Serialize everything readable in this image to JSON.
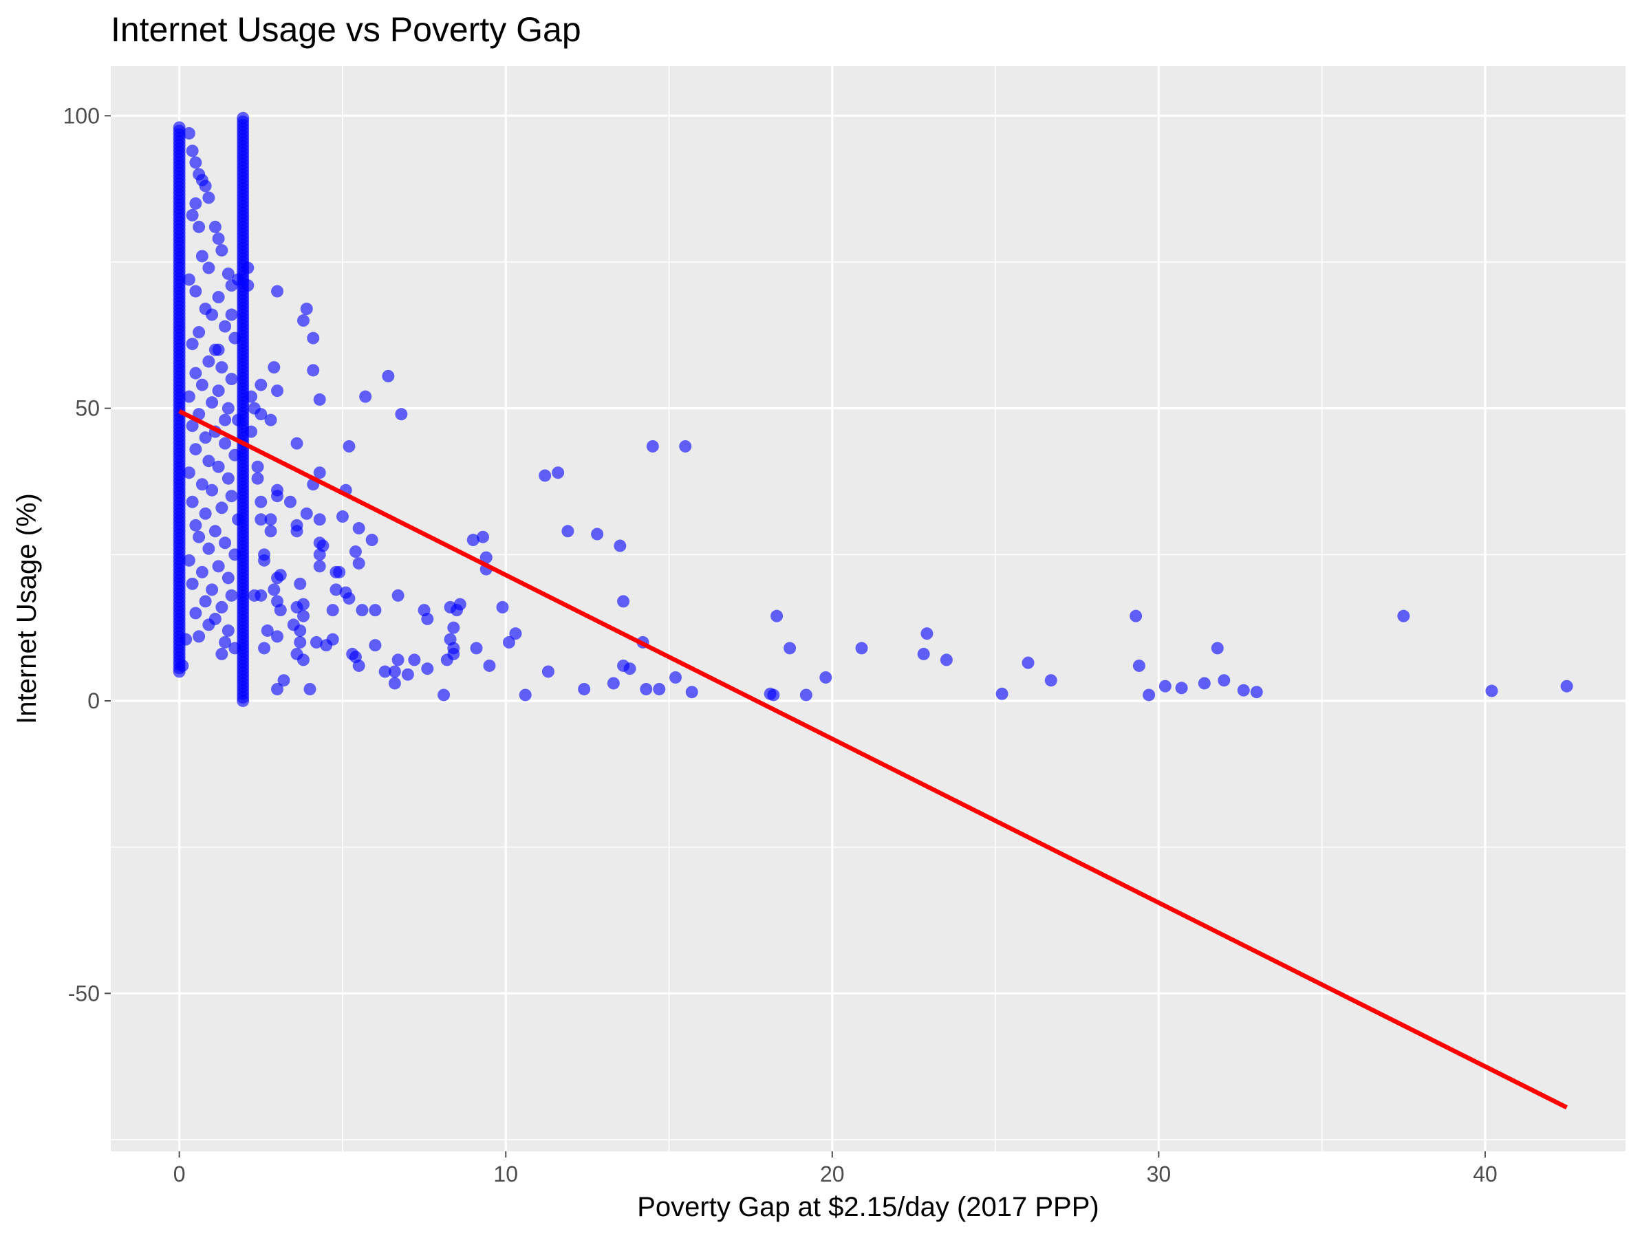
{
  "colors": {
    "panel": "#ebebeb",
    "grid": "#ffffff",
    "points": "#0000ff",
    "trend": "#ff0000",
    "tick": "#4d4d4d"
  },
  "chart_data": {
    "type": "scatter",
    "title": "Internet Usage vs Poverty Gap",
    "xlabel": "Poverty Gap at $2.15/day (2017 PPP)",
    "ylabel": "Internet Usage (%)",
    "xlim": [
      -2.1,
      44.3
    ],
    "ylim": [
      -77,
      108.5
    ],
    "x_ticks": [
      0,
      10,
      20,
      30,
      40
    ],
    "y_ticks": [
      -50,
      0,
      50,
      100
    ],
    "grid": true,
    "legend": "none",
    "trend_line": {
      "type": "linear",
      "x": [
        0,
        42.5
      ],
      "y": [
        49.5,
        -69.5
      ]
    },
    "dense_clusters": [
      {
        "x": 0.0,
        "y_range": [
          5,
          98.5
        ]
      },
      {
        "x": 1.95,
        "y_range": [
          0,
          100
        ]
      }
    ],
    "points": [
      [
        0.3,
        97
      ],
      [
        0.4,
        94
      ],
      [
        0.5,
        92
      ],
      [
        0.6,
        90
      ],
      [
        0.7,
        89
      ],
      [
        0.8,
        88
      ],
      [
        0.9,
        86
      ],
      [
        0.5,
        85
      ],
      [
        0.4,
        83
      ],
      [
        0.6,
        81
      ],
      [
        1.1,
        81
      ],
      [
        1.2,
        79
      ],
      [
        1.3,
        77
      ],
      [
        0.7,
        76
      ],
      [
        0.9,
        74
      ],
      [
        1.5,
        73
      ],
      [
        0.3,
        72
      ],
      [
        1.6,
        71
      ],
      [
        1.8,
        72
      ],
      [
        0.5,
        70
      ],
      [
        1.2,
        69
      ],
      [
        0.8,
        67
      ],
      [
        1.0,
        66
      ],
      [
        1.4,
        64
      ],
      [
        0.6,
        63
      ],
      [
        1.7,
        62
      ],
      [
        0.4,
        61
      ],
      [
        1.1,
        60
      ],
      [
        0.9,
        58
      ],
      [
        1.3,
        57
      ],
      [
        0.5,
        56
      ],
      [
        1.6,
        55
      ],
      [
        0.7,
        54
      ],
      [
        1.2,
        53
      ],
      [
        0.3,
        52
      ],
      [
        1.0,
        51
      ],
      [
        1.5,
        50
      ],
      [
        0.6,
        49
      ],
      [
        1.8,
        48
      ],
      [
        0.4,
        47
      ],
      [
        1.1,
        46
      ],
      [
        0.8,
        45
      ],
      [
        1.4,
        44
      ],
      [
        0.5,
        43
      ],
      [
        1.7,
        42
      ],
      [
        0.9,
        41
      ],
      [
        1.2,
        40
      ],
      [
        0.3,
        39
      ],
      [
        1.5,
        38
      ],
      [
        0.7,
        37
      ],
      [
        1.0,
        36
      ],
      [
        1.6,
        35
      ],
      [
        0.4,
        34
      ],
      [
        1.3,
        33
      ],
      [
        0.8,
        32
      ],
      [
        1.8,
        31
      ],
      [
        0.5,
        30
      ],
      [
        1.1,
        29
      ],
      [
        0.6,
        28
      ],
      [
        1.4,
        27
      ],
      [
        0.9,
        26
      ],
      [
        1.7,
        25
      ],
      [
        0.3,
        24
      ],
      [
        1.2,
        23
      ],
      [
        0.7,
        22
      ],
      [
        1.5,
        21
      ],
      [
        0.4,
        20
      ],
      [
        1.0,
        19
      ],
      [
        1.6,
        18
      ],
      [
        0.8,
        17
      ],
      [
        1.3,
        16
      ],
      [
        0.5,
        15
      ],
      [
        1.1,
        14
      ],
      [
        0.9,
        13
      ],
      [
        1.5,
        12
      ],
      [
        0.6,
        11
      ],
      [
        1.4,
        10
      ],
      [
        1.7,
        9
      ],
      [
        1.3,
        8
      ],
      [
        0.2,
        10.5
      ],
      [
        0.1,
        6
      ],
      [
        1.4,
        48
      ],
      [
        1.6,
        66
      ],
      [
        1.2,
        60
      ],
      [
        2.1,
        74
      ],
      [
        2.1,
        71
      ],
      [
        2.2,
        52
      ],
      [
        2.2,
        46
      ],
      [
        2.3,
        50
      ],
      [
        2.4,
        40
      ],
      [
        2.4,
        38
      ],
      [
        2.5,
        54
      ],
      [
        2.5,
        49
      ],
      [
        2.5,
        34
      ],
      [
        2.5,
        31
      ],
      [
        2.6,
        25
      ],
      [
        2.6,
        24
      ],
      [
        2.3,
        18
      ],
      [
        2.5,
        18
      ],
      [
        2.6,
        9
      ],
      [
        2.7,
        12
      ],
      [
        2.8,
        48
      ],
      [
        2.8,
        31
      ],
      [
        2.8,
        29
      ],
      [
        2.9,
        57
      ],
      [
        2.9,
        19
      ],
      [
        3.0,
        53
      ],
      [
        3.0,
        36
      ],
      [
        3.0,
        35
      ],
      [
        3.0,
        21
      ],
      [
        3.0,
        17
      ],
      [
        3.0,
        11
      ],
      [
        3.0,
        70
      ],
      [
        3.0,
        2
      ],
      [
        3.1,
        21.5
      ],
      [
        3.1,
        15.5
      ],
      [
        3.2,
        3.5
      ],
      [
        3.4,
        34
      ],
      [
        3.5,
        13
      ],
      [
        3.6,
        44
      ],
      [
        3.6,
        30
      ],
      [
        3.6,
        29
      ],
      [
        3.6,
        16
      ],
      [
        3.6,
        8
      ],
      [
        3.7,
        20
      ],
      [
        3.7,
        12
      ],
      [
        3.7,
        10
      ],
      [
        3.8,
        16.5
      ],
      [
        3.8,
        14.5
      ],
      [
        3.8,
        65
      ],
      [
        3.8,
        7
      ],
      [
        3.9,
        67
      ],
      [
        3.9,
        32
      ],
      [
        4.0,
        2
      ],
      [
        4.1,
        62
      ],
      [
        4.1,
        56.5
      ],
      [
        4.1,
        37
      ],
      [
        4.2,
        10
      ],
      [
        4.3,
        51.5
      ],
      [
        4.3,
        39
      ],
      [
        4.3,
        31
      ],
      [
        4.3,
        27
      ],
      [
        4.3,
        25
      ],
      [
        4.3,
        23
      ],
      [
        4.4,
        26.5
      ],
      [
        4.5,
        9.5
      ],
      [
        4.7,
        15.5
      ],
      [
        4.7,
        10.5
      ],
      [
        4.8,
        22
      ],
      [
        4.8,
        19
      ],
      [
        4.9,
        22
      ],
      [
        5.0,
        31.5
      ],
      [
        5.1,
        36
      ],
      [
        5.1,
        18.5
      ],
      [
        5.2,
        43.5
      ],
      [
        5.2,
        17.5
      ],
      [
        5.3,
        8
      ],
      [
        5.4,
        25.5
      ],
      [
        5.4,
        7.5
      ],
      [
        5.5,
        29.5
      ],
      [
        5.5,
        6
      ],
      [
        5.5,
        23.5
      ],
      [
        5.6,
        15.5
      ],
      [
        5.7,
        52
      ],
      [
        5.9,
        27.5
      ],
      [
        6.0,
        15.5
      ],
      [
        6.0,
        9.5
      ],
      [
        6.3,
        5
      ],
      [
        6.4,
        55.5
      ],
      [
        6.6,
        3
      ],
      [
        6.6,
        5
      ],
      [
        6.7,
        7
      ],
      [
        6.7,
        18
      ],
      [
        6.8,
        49
      ],
      [
        7.0,
        4.5
      ],
      [
        7.2,
        7
      ],
      [
        7.5,
        15.5
      ],
      [
        7.6,
        14
      ],
      [
        7.6,
        5.5
      ],
      [
        8.1,
        1
      ],
      [
        8.2,
        7
      ],
      [
        8.3,
        16
      ],
      [
        8.3,
        10.5
      ],
      [
        8.4,
        12.5
      ],
      [
        8.4,
        9
      ],
      [
        8.4,
        8
      ],
      [
        8.5,
        15.5
      ],
      [
        8.6,
        16.5
      ],
      [
        9.0,
        27.5
      ],
      [
        9.1,
        9
      ],
      [
        9.3,
        28
      ],
      [
        9.4,
        24.5
      ],
      [
        9.4,
        22.5
      ],
      [
        9.5,
        6
      ],
      [
        9.9,
        16
      ],
      [
        10.1,
        10
      ],
      [
        10.3,
        11.5
      ],
      [
        10.6,
        1
      ],
      [
        11.2,
        38.5
      ],
      [
        11.3,
        5
      ],
      [
        11.6,
        39
      ],
      [
        11.9,
        29
      ],
      [
        12.4,
        2
      ],
      [
        12.8,
        28.5
      ],
      [
        13.3,
        3
      ],
      [
        13.5,
        26.5
      ],
      [
        13.6,
        17
      ],
      [
        13.6,
        6
      ],
      [
        13.8,
        5.5
      ],
      [
        14.2,
        10
      ],
      [
        14.3,
        2
      ],
      [
        14.5,
        43.5
      ],
      [
        14.7,
        2
      ],
      [
        15.2,
        4
      ],
      [
        15.5,
        43.5
      ],
      [
        15.7,
        1.5
      ],
      [
        18.1,
        1.2
      ],
      [
        18.2,
        1
      ],
      [
        18.3,
        14.5
      ],
      [
        18.7,
        9
      ],
      [
        19.2,
        1
      ],
      [
        19.8,
        4
      ],
      [
        20.9,
        9
      ],
      [
        22.8,
        8
      ],
      [
        22.9,
        11.5
      ],
      [
        23.5,
        7
      ],
      [
        25.2,
        1.2
      ],
      [
        26.0,
        6.5
      ],
      [
        26.7,
        3.5
      ],
      [
        29.3,
        14.5
      ],
      [
        29.4,
        6
      ],
      [
        29.7,
        1
      ],
      [
        30.2,
        2.5
      ],
      [
        30.7,
        2.2
      ],
      [
        31.4,
        3
      ],
      [
        31.8,
        9
      ],
      [
        32.0,
        3.5
      ],
      [
        32.6,
        1.8
      ],
      [
        33.0,
        1.5
      ],
      [
        37.5,
        14.5
      ],
      [
        40.2,
        1.7
      ],
      [
        42.5,
        2.5
      ]
    ]
  }
}
